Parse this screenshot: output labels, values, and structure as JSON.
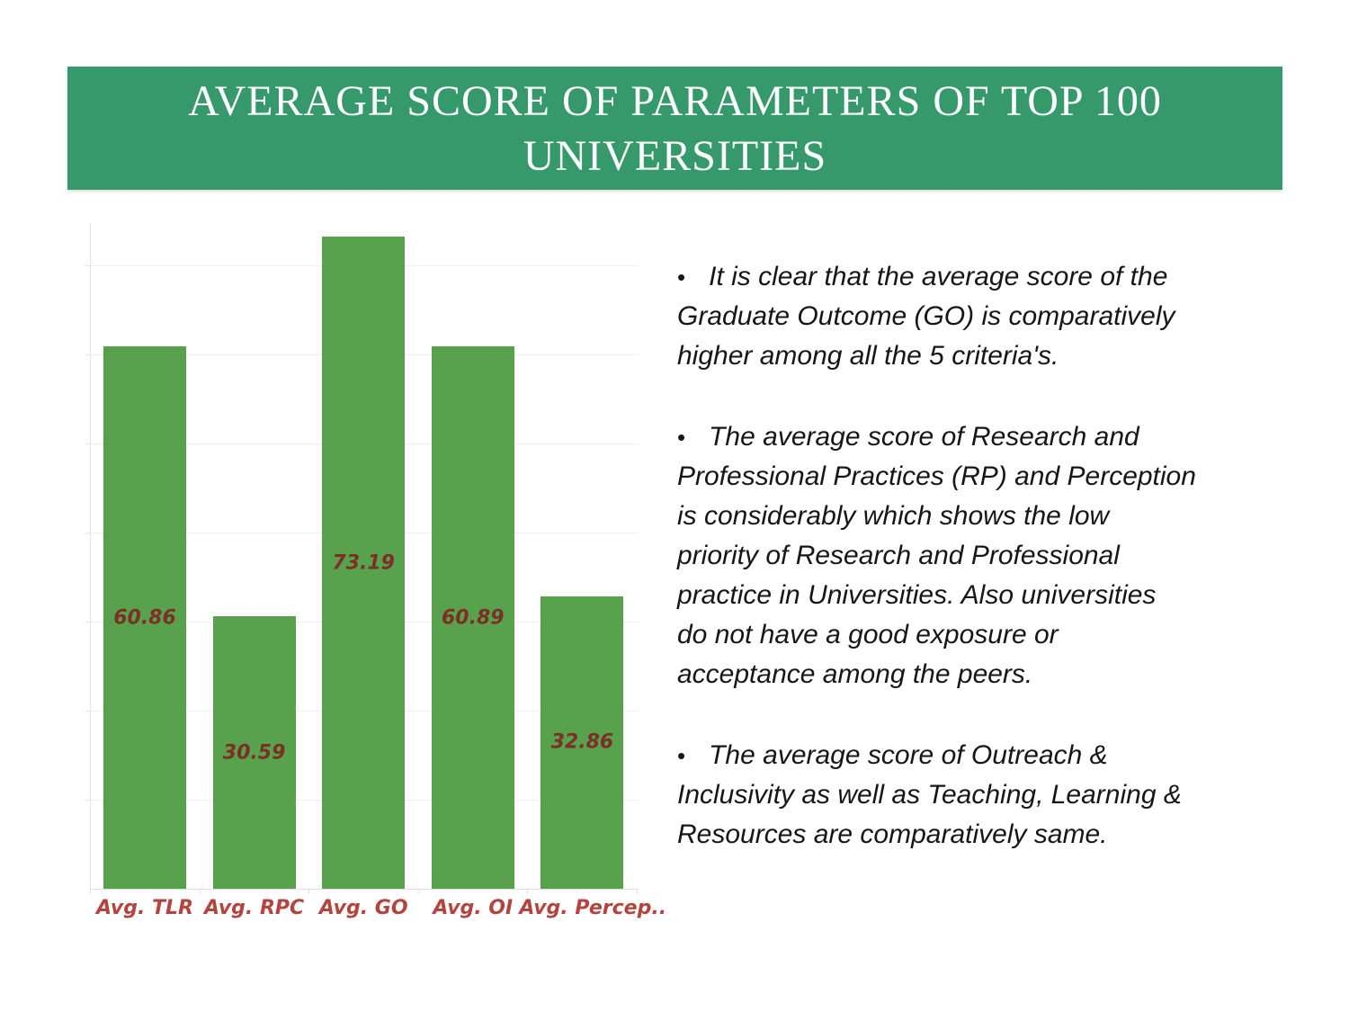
{
  "slide": {
    "title_line1": "AVERAGE SCORE OF PARAMETERS OF TOP 100",
    "title_line2": "UNIVERSITIES"
  },
  "colors": {
    "banner_green": "#36996B",
    "bar_green": "#58A24D",
    "category_label_red": "#B4453E",
    "data_label_maroon": "#7C2F27",
    "gridline_gray": "#F0F0F0",
    "body_text": "#161616",
    "title_text": "#FFFFFF"
  },
  "chart_data": {
    "type": "bar",
    "categories": [
      "Avg. TLR",
      "Avg. RPC",
      "Avg. GO",
      "Avg. OI",
      "Avg. Percep.."
    ],
    "values": [
      60.86,
      30.59,
      73.19,
      60.89,
      32.86
    ],
    "data_labels": [
      "60.86",
      "30.59",
      "73.19",
      "60.89",
      "32.86"
    ],
    "title": "",
    "xlabel": "",
    "ylabel": "",
    "ylim": [
      0,
      75
    ],
    "gridlines": "horizontal every 10 units, y-axis values hidden",
    "legend": "none",
    "bar_color": "#58A24D",
    "data_label_position": "inside center"
  },
  "bullets": [
    {
      "marker": "•",
      "text": "It is clear that the average score of the\nGraduate Outcome (GO) is comparatively\nhigher among all the 5 criteria's."
    },
    {
      "marker": "•",
      "text": "The average score of Research and\nProfessional Practices (RP) and Perception\nis considerably which shows the low\npriority of Research and Professional\npractice in Universities. Also universities\ndo not have a good exposure or\nacceptance among the peers."
    },
    {
      "marker": "•",
      "text": "The average score of Outreach &\nInclusivity as well as Teaching, Learning &\nResources are comparatively same."
    }
  ]
}
